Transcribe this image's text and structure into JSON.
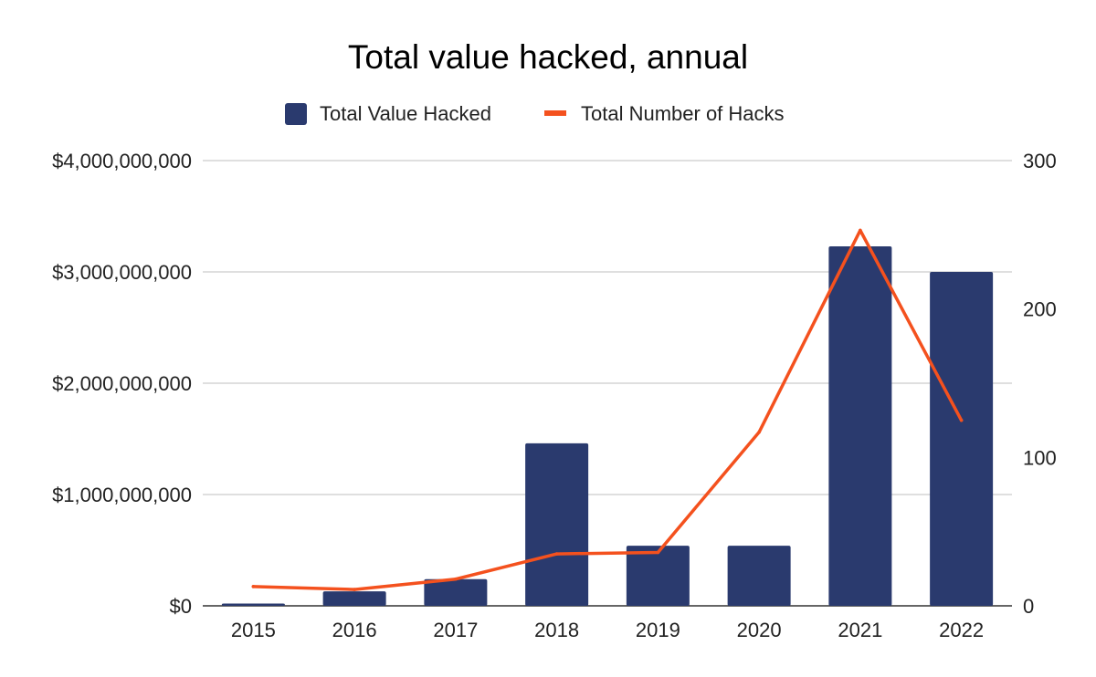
{
  "chart_data": {
    "type": "bar",
    "title": "Total value hacked, annual",
    "xlabel": "",
    "ylabel": "",
    "categories": [
      "2015",
      "2016",
      "2017",
      "2018",
      "2019",
      "2020",
      "2021",
      "2022"
    ],
    "series": [
      {
        "name": "Total Value Hacked",
        "type": "bar",
        "axis": "left",
        "color": "#2a3a6e",
        "values": [
          20000000,
          130000000,
          240000000,
          1460000000,
          540000000,
          540000000,
          3230000000,
          3000000000
        ]
      },
      {
        "name": "Total Number of Hacks",
        "type": "line",
        "axis": "right",
        "color": "#f4511e",
        "values": [
          13,
          11,
          18,
          35,
          36,
          117,
          253,
          125
        ]
      }
    ],
    "ylim": [
      0,
      4000000000
    ],
    "y_ticks": [
      "$0",
      "$1,000,000,000",
      "$2,000,000,000",
      "$3,000,000,000",
      "$4,000,000,000"
    ],
    "y2lim": [
      0,
      300
    ],
    "y2_ticks": [
      "0",
      "100",
      "200",
      "300"
    ],
    "grid": true,
    "legend_position": "top"
  }
}
